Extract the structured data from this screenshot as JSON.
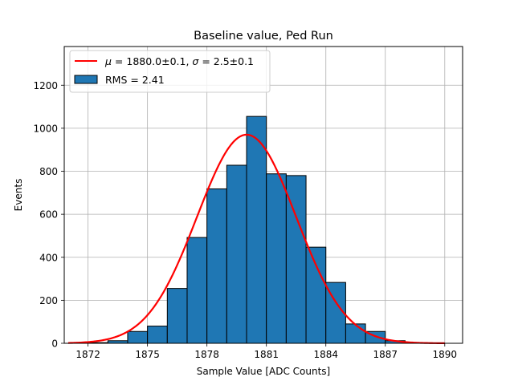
{
  "chart_data": {
    "type": "bar",
    "title": "Baseline value, Ped Run",
    "xlabel": "Sample Value [ADC Counts]",
    "ylabel": "Events",
    "xlim": [
      1870.8,
      1890.9
    ],
    "ylim": [
      0,
      1380
    ],
    "xticks": [
      1872,
      1875,
      1878,
      1881,
      1884,
      1887,
      1890
    ],
    "yticks": [
      0,
      200,
      400,
      600,
      800,
      1000,
      1200
    ],
    "grid": true,
    "legend_position": "upper-left",
    "histogram": {
      "name": "RMS = 2.41",
      "color": "#1f77b4",
      "edgecolor": "#000000",
      "bin_edges": [
        1872.0,
        1873.0,
        1874.0,
        1875.0,
        1876.0,
        1877.0,
        1878.0,
        1879.0,
        1880.0,
        1881.0,
        1882.0,
        1883.0,
        1884.0,
        1885.0,
        1886.0,
        1887.0,
        1888.0
      ],
      "counts": [
        3,
        12,
        55,
        80,
        255,
        492,
        718,
        828,
        1055,
        788,
        780,
        447,
        283,
        90,
        55,
        12
      ]
    },
    "fit": {
      "name": "μ = 1880.0±0.1, σ = 2.5±0.1",
      "name_parts": {
        "mu_symbol": "μ",
        "mu_text": " = 1880.0±0.1, ",
        "sigma_symbol": "σ",
        "sigma_text": " = 2.5±0.1"
      },
      "color": "#ff0000",
      "function": "gaussian",
      "amplitude": 970,
      "mu": 1880.0,
      "sigma": 2.5,
      "x_range": [
        1871,
        1890
      ]
    }
  }
}
